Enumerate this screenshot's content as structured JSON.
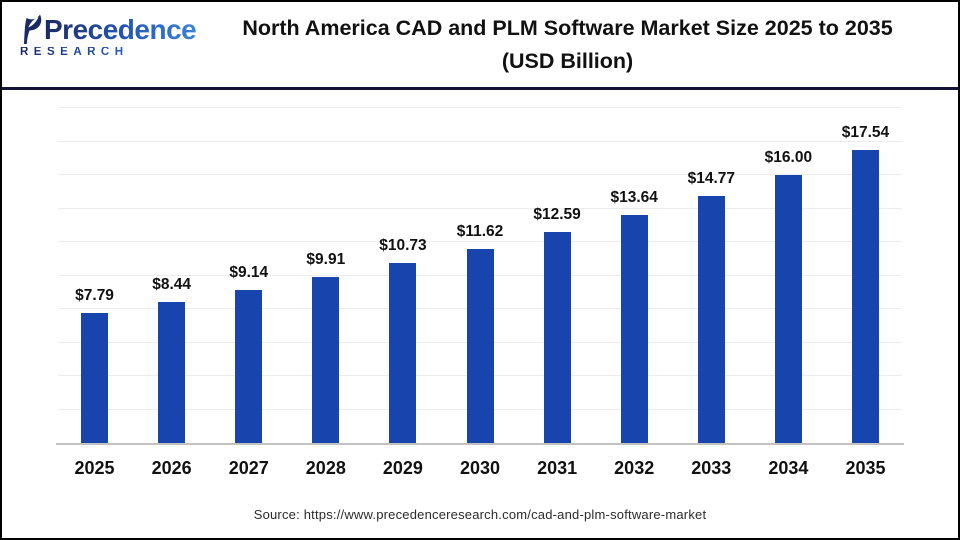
{
  "header": {
    "logo": {
      "brand_line1": "Precedence",
      "brand_line2": "RESEARCH"
    },
    "title_line1": "North America CAD and PLM Software Market Size 2025 to 2035",
    "title_line2": "(USD Billion)"
  },
  "chart_data": {
    "type": "bar",
    "title": "North America CAD and PLM Software Market Size 2025 to 2035 (USD Billion)",
    "categories": [
      "2025",
      "2026",
      "2027",
      "2028",
      "2029",
      "2030",
      "2031",
      "2032",
      "2033",
      "2034",
      "2035"
    ],
    "values": [
      7.79,
      8.44,
      9.14,
      9.91,
      10.73,
      11.62,
      12.59,
      13.64,
      14.77,
      16.0,
      17.54
    ],
    "value_labels": [
      "$7.79",
      "$8.44",
      "$9.14",
      "$9.91",
      "$10.73",
      "$11.62",
      "$12.59",
      "$13.64",
      "$14.77",
      "$16.00",
      "$17.54"
    ],
    "xlabel": "",
    "ylabel": "",
    "ylim": [
      0,
      20.5
    ],
    "gridline_step": 2,
    "grid": true,
    "legend_position": "none",
    "bar_color": "#1845ad"
  },
  "footer": {
    "source": "Source: https://www.precedenceresearch.com/cad-and-plm-software-market"
  },
  "colors": {
    "bar": "#1845ad",
    "divider": "#131339",
    "axis_line": "#c2c2c2",
    "gridline": "#ececec",
    "logo_navy": "#1b2a63",
    "logo_blue": "#3b82d8",
    "title_text": "#111111",
    "source_text": "#2b2b2b"
  }
}
